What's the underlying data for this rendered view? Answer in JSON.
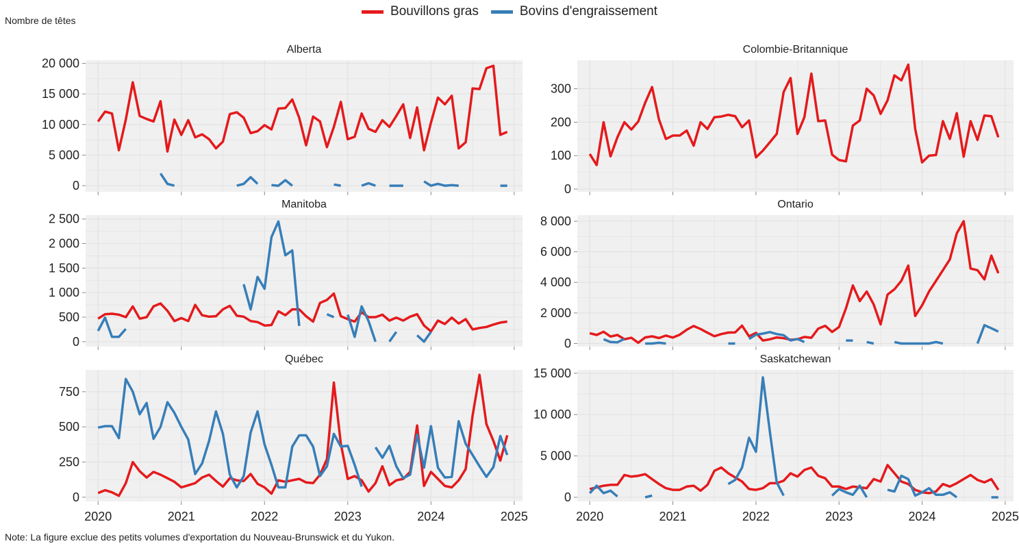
{
  "legend": [
    {
      "label": "Bouvillons gras",
      "color": "#e41a1c"
    },
    {
      "label": "Bovins d'engraissement",
      "color": "#377eb8"
    }
  ],
  "y_axis_title": "Nombre de têtes",
  "note": "Note: La figure exclue des petits volumes d'exportation du Nouveau-Brunswick et du Yukon.",
  "colors": {
    "panel_bg": "#f0f0f0",
    "grid": "#e2e2e2",
    "red": "#e41a1c",
    "blue": "#377eb8"
  },
  "chart_data": [
    {
      "type": "line",
      "title": "Alberta",
      "x_range": [
        2019.85,
        2025.1
      ],
      "ylim": [
        -1000,
        20500
      ],
      "xticks": [
        2020,
        2021,
        2022,
        2023,
        2024,
        2025
      ],
      "yticks": [
        {
          "v": 0,
          "l": "0"
        },
        {
          "v": 5000,
          "l": "5 000"
        },
        {
          "v": 10000,
          "l": "10 000"
        },
        {
          "v": 15000,
          "l": "15 000"
        },
        {
          "v": 20000,
          "l": "20 000"
        }
      ],
      "series": [
        {
          "name": "Bouvillons gras",
          "color": "#e41a1c",
          "values": [
            10500,
            12100,
            11800,
            5800,
            10800,
            16900,
            11400,
            10900,
            10500,
            13800,
            5600,
            10800,
            8300,
            10700,
            7900,
            8400,
            7600,
            6100,
            7200,
            11700,
            12000,
            11100,
            8600,
            8900,
            9900,
            9200,
            12600,
            12700,
            14100,
            11100,
            6600,
            11300,
            10500,
            6300,
            9600,
            13700,
            7600,
            8000,
            11800,
            9300,
            8800,
            10700,
            9600,
            11400,
            13300,
            7800,
            12800,
            5800,
            10300,
            14400,
            13300,
            14700,
            6100,
            7100,
            15900,
            15800,
            19200,
            19600,
            8300,
            8800
          ]
        },
        {
          "name": "Bovins d'engraissement",
          "color": "#377eb8",
          "values": [
            null,
            null,
            null,
            null,
            null,
            null,
            null,
            null,
            null,
            2000,
            300,
            0,
            null,
            null,
            null,
            null,
            null,
            0,
            null,
            null,
            0,
            300,
            1400,
            300,
            null,
            100,
            0,
            900,
            0,
            null,
            null,
            null,
            null,
            null,
            200,
            0,
            null,
            null,
            0,
            400,
            0,
            null,
            0,
            0,
            0,
            null,
            null,
            700,
            0,
            300,
            0,
            100,
            0,
            null,
            null,
            null,
            null,
            null,
            0,
            0
          ]
        }
      ]
    },
    {
      "type": "line",
      "title": "Colombie-Britannique",
      "x_range": [
        2019.85,
        2025.1
      ],
      "ylim": [
        -8,
        385
      ],
      "xticks": [
        2020,
        2021,
        2022,
        2023,
        2024,
        2025
      ],
      "yticks": [
        {
          "v": 0,
          "l": "0"
        },
        {
          "v": 100,
          "l": "100"
        },
        {
          "v": 200,
          "l": "200"
        },
        {
          "v": 300,
          "l": "300"
        }
      ],
      "series": [
        {
          "name": "Bouvillons gras",
          "color": "#e41a1c",
          "values": [
            105,
            72,
            200,
            98,
            155,
            200,
            178,
            202,
            258,
            305,
            208,
            150,
            160,
            160,
            175,
            130,
            200,
            180,
            215,
            217,
            222,
            218,
            185,
            205,
            95,
            115,
            140,
            165,
            290,
            332,
            165,
            215,
            345,
            203,
            205,
            103,
            87,
            83,
            190,
            205,
            300,
            280,
            225,
            265,
            340,
            325,
            372,
            180,
            80,
            100,
            102,
            203,
            150,
            227,
            97,
            203,
            147,
            220,
            218,
            155
          ]
        },
        {
          "name": "Bovins d'engraissement",
          "color": "#377eb8",
          "values": [
            null,
            null,
            null,
            null,
            null,
            null,
            null,
            null,
            null,
            null,
            null,
            null,
            null,
            null,
            null,
            null,
            null,
            null,
            null,
            null,
            null,
            null,
            null,
            null,
            null,
            null,
            null,
            null,
            null,
            null,
            null,
            null,
            null,
            null,
            null,
            null,
            null,
            null,
            null,
            null,
            null,
            null,
            null,
            null,
            null,
            null,
            null,
            null,
            null,
            null,
            null,
            null,
            null,
            null,
            null,
            null,
            null,
            null,
            null,
            null
          ]
        }
      ]
    },
    {
      "type": "line",
      "title": "Manitoba",
      "x_range": [
        2019.85,
        2025.1
      ],
      "ylim": [
        -100,
        2580
      ],
      "xticks": [
        2020,
        2021,
        2022,
        2023,
        2024,
        2025
      ],
      "yticks": [
        {
          "v": 0,
          "l": "0"
        },
        {
          "v": 500,
          "l": "500"
        },
        {
          "v": 1000,
          "l": "1 000"
        },
        {
          "v": 1500,
          "l": "1 500"
        },
        {
          "v": 2000,
          "l": "2 000"
        },
        {
          "v": 2500,
          "l": "2 500"
        }
      ],
      "series": [
        {
          "name": "Bouvillons gras",
          "color": "#e41a1c",
          "values": [
            470,
            560,
            570,
            550,
            500,
            720,
            470,
            500,
            720,
            780,
            630,
            420,
            480,
            420,
            750,
            540,
            510,
            520,
            660,
            730,
            530,
            510,
            420,
            400,
            330,
            340,
            620,
            540,
            660,
            660,
            520,
            410,
            790,
            850,
            980,
            520,
            460,
            410,
            600,
            500,
            500,
            550,
            430,
            490,
            430,
            510,
            560,
            330,
            210,
            430,
            360,
            490,
            370,
            460,
            250,
            280,
            300,
            350,
            390,
            410
          ]
        },
        {
          "name": "Bovins d'engraissement",
          "color": "#377eb8",
          "values": [
            220,
            490,
            100,
            100,
            260,
            null,
            null,
            null,
            null,
            null,
            null,
            null,
            null,
            null,
            null,
            null,
            null,
            null,
            null,
            null,
            null,
            1170,
            660,
            1320,
            1080,
            2130,
            2450,
            1760,
            1860,
            320,
            null,
            null,
            null,
            560,
            500,
            null,
            550,
            100,
            720,
            420,
            0,
            null,
            0,
            200,
            null,
            null,
            130,
            0,
            200,
            null,
            null,
            null,
            null,
            null,
            null,
            null,
            null,
            null,
            null,
            null
          ]
        }
      ]
    },
    {
      "type": "line",
      "title": "Ontario",
      "x_range": [
        2019.85,
        2025.1
      ],
      "ylim": [
        -200,
        8400
      ],
      "xticks": [
        2020,
        2021,
        2022,
        2023,
        2024,
        2025
      ],
      "yticks": [
        {
          "v": 0,
          "l": "0"
        },
        {
          "v": 2000,
          "l": "2 000"
        },
        {
          "v": 4000,
          "l": "4 000"
        },
        {
          "v": 6000,
          "l": "6 000"
        },
        {
          "v": 8000,
          "l": "8 000"
        }
      ],
      "series": [
        {
          "name": "Bouvillons gras",
          "color": "#e41a1c",
          "values": [
            680,
            560,
            770,
            460,
            560,
            280,
            380,
            50,
            400,
            470,
            360,
            520,
            390,
            580,
            900,
            1150,
            950,
            710,
            480,
            620,
            720,
            730,
            1170,
            470,
            700,
            200,
            280,
            400,
            350,
            250,
            280,
            430,
            380,
            980,
            1160,
            760,
            1080,
            2300,
            3800,
            2780,
            3400,
            2560,
            1250,
            3200,
            3550,
            4100,
            5100,
            1800,
            2500,
            3400,
            4100,
            4800,
            5500,
            7200,
            8000,
            4900,
            4800,
            4200,
            5750,
            4600
          ]
        },
        {
          "name": "Bovins d'engraissement",
          "color": "#377eb8",
          "values": [
            null,
            null,
            280,
            100,
            80,
            300,
            null,
            null,
            0,
            0,
            50,
            0,
            null,
            null,
            null,
            null,
            null,
            null,
            null,
            null,
            0,
            0,
            null,
            300,
            580,
            650,
            750,
            620,
            550,
            200,
            300,
            100,
            null,
            null,
            null,
            null,
            null,
            200,
            200,
            null,
            100,
            0,
            null,
            null,
            100,
            0,
            0,
            0,
            0,
            0,
            100,
            0,
            null,
            null,
            null,
            null,
            0,
            1200,
            1000,
            780
          ]
        }
      ]
    },
    {
      "type": "line",
      "title": "Québec",
      "x_range": [
        2019.85,
        2025.1
      ],
      "ylim": [
        -30,
        905
      ],
      "xticks": [
        2020,
        2021,
        2022,
        2023,
        2024,
        2025
      ],
      "yticks": [
        {
          "v": 0,
          "l": "0"
        },
        {
          "v": 250,
          "l": "250"
        },
        {
          "v": 500,
          "l": "500"
        },
        {
          "v": 750,
          "l": "750"
        }
      ],
      "series": [
        {
          "name": "Bouvillons gras",
          "color": "#e41a1c",
          "values": [
            30,
            50,
            35,
            10,
            100,
            250,
            185,
            140,
            180,
            160,
            135,
            110,
            70,
            85,
            100,
            140,
            160,
            115,
            75,
            135,
            120,
            115,
            165,
            95,
            70,
            25,
            120,
            110,
            120,
            130,
            105,
            100,
            160,
            270,
            815,
            380,
            130,
            150,
            120,
            40,
            100,
            220,
            85,
            120,
            130,
            180,
            510,
            80,
            180,
            130,
            80,
            70,
            120,
            200,
            580,
            870,
            520,
            400,
            260,
            440
          ]
        },
        {
          "name": "Bovins d'engraissement",
          "color": "#377eb8",
          "values": [
            495,
            505,
            505,
            420,
            840,
            750,
            590,
            670,
            415,
            500,
            675,
            600,
            500,
            410,
            165,
            240,
            400,
            610,
            450,
            160,
            70,
            150,
            460,
            610,
            375,
            230,
            70,
            70,
            360,
            440,
            440,
            360,
            150,
            220,
            450,
            360,
            365,
            230,
            75,
            null,
            355,
            280,
            365,
            220,
            135,
            160,
            445,
            210,
            505,
            210,
            140,
            145,
            540,
            380,
            300,
            220,
            145,
            215,
            435,
            300
          ]
        }
      ]
    },
    {
      "type": "line",
      "title": "Saskatchewan",
      "x_range": [
        2019.85,
        2025.1
      ],
      "ylim": [
        -500,
        15400
      ],
      "xticks": [
        2020,
        2021,
        2022,
        2023,
        2024,
        2025
      ],
      "yticks": [
        {
          "v": 0,
          "l": "0"
        },
        {
          "v": 5000,
          "l": "5 000"
        },
        {
          "v": 10000,
          "l": "10 000"
        },
        {
          "v": 15000,
          "l": "15 000"
        }
      ],
      "series": [
        {
          "name": "Bouvillons gras",
          "color": "#e41a1c",
          "values": [
            1000,
            1200,
            1400,
            1500,
            1500,
            2700,
            2500,
            2600,
            2800,
            2200,
            1600,
            1100,
            900,
            900,
            1300,
            1400,
            800,
            1500,
            3200,
            3600,
            2900,
            2400,
            1900,
            1000,
            900,
            1100,
            1700,
            1700,
            2000,
            2900,
            2500,
            3300,
            3600,
            2600,
            2300,
            1300,
            1300,
            1000,
            1300,
            1200,
            1100,
            2200,
            1900,
            3900,
            2900,
            1900,
            1600,
            900,
            600,
            500,
            700,
            1600,
            1300,
            1700,
            2200,
            2700,
            2100,
            1800,
            2200,
            900
          ]
        },
        {
          "name": "Bovins d'engraissement",
          "color": "#377eb8",
          "values": [
            500,
            1400,
            500,
            800,
            100,
            null,
            null,
            null,
            0,
            200,
            null,
            null,
            null,
            null,
            null,
            null,
            null,
            null,
            null,
            null,
            1600,
            2100,
            3600,
            7200,
            5500,
            14500,
            8000,
            1800,
            200,
            null,
            null,
            null,
            null,
            null,
            null,
            200,
            1000,
            600,
            300,
            1400,
            0,
            null,
            null,
            900,
            700,
            2600,
            2200,
            200,
            600,
            1100,
            300,
            300,
            600,
            0,
            null,
            null,
            null,
            null,
            0,
            0
          ]
        }
      ]
    }
  ]
}
